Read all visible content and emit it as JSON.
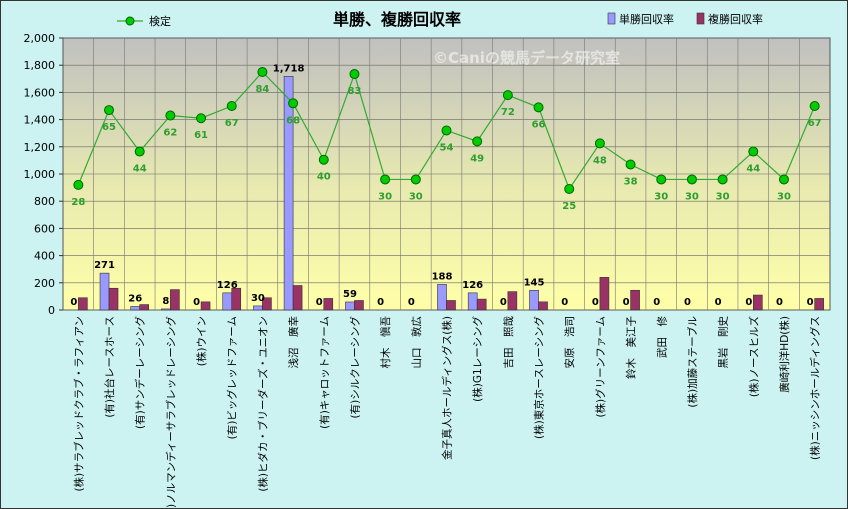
{
  "chart_data": {
    "type": "bar",
    "title": "単勝、複勝回収率",
    "watermark": "©Caniの競馬データ研究室",
    "ylim": [
      0,
      2000
    ],
    "yticks": [
      "0",
      "200",
      "400",
      "600",
      "800",
      "1,000",
      "1,200",
      "1,400",
      "1,600",
      "1,800",
      "2,000"
    ],
    "ytick_values": [
      0,
      200,
      400,
      600,
      800,
      1000,
      1200,
      1400,
      1600,
      1800,
      2000
    ],
    "legend_placement": "top",
    "grid": true,
    "categories": [
      "(株)サラブレッドクラブ・ラフィアン",
      "(有)社台レースホース",
      "(有)サンデーレーシング",
      "(株)ノルマンディーサラブレッドレーシング",
      "(株)ウイン",
      "(有)ビッグレッドファーム",
      "(株)ヒダカ・ブリーダーズ・ユニオン",
      "浅沼　廣幸",
      "(有)キャロットファーム",
      "(有)シルクレーシング",
      "村木　愼吾",
      "山口　敦広",
      "金子真人ホールディングス(株)",
      "(株)G1レーシング",
      "吉田　照哉",
      "(株)東京ホースレーシング",
      "安原　浩司",
      "(株)グリーンファーム",
      "鈴木　美江子",
      "武田　修",
      "(株)加藤ステーブル",
      "黒岩　剛史",
      "(株)ノースヒルズ",
      "廣崎利洋HD(株)",
      "(株)ニッシンホールディングス"
    ],
    "series": [
      {
        "name": "単勝回収率",
        "color": "#9999ff",
        "values": [
          0,
          271,
          26,
          8,
          0,
          126,
          30,
          1718,
          0,
          59,
          0,
          0,
          188,
          126,
          0,
          145,
          0,
          0,
          0,
          0,
          0,
          0,
          0,
          0,
          0
        ],
        "labels": [
          "0",
          "271",
          "26",
          "8",
          "0",
          "126",
          "30",
          "1,718",
          "0",
          "59",
          "0",
          "0",
          "188",
          "126",
          "0",
          "145",
          "0",
          "0",
          "0",
          "0",
          "0",
          "0",
          "0",
          "0",
          "0"
        ]
      },
      {
        "name": "複勝回収率",
        "color": "#993366",
        "values": [
          90,
          160,
          40,
          150,
          60,
          160,
          90,
          180,
          85,
          70,
          0,
          0,
          70,
          80,
          135,
          60,
          0,
          240,
          145,
          0,
          0,
          0,
          110,
          0,
          85
        ]
      },
      {
        "name": "検定",
        "color": "#33aa33",
        "type": "line",
        "values": [
          920,
          1470,
          1165,
          1430,
          1410,
          1500,
          1750,
          1520,
          1105,
          1735,
          960,
          960,
          1320,
          1240,
          1580,
          1490,
          890,
          1225,
          1070,
          960,
          960,
          960,
          1165,
          960,
          1500
        ],
        "labels": [
          "28",
          "65",
          "44",
          "62",
          "61",
          "67",
          "84",
          "68",
          "40",
          "83",
          "30",
          "30",
          "54",
          "49",
          "72",
          "66",
          "25",
          "48",
          "38",
          "30",
          "30",
          "30",
          "44",
          "30",
          "67"
        ]
      }
    ]
  }
}
